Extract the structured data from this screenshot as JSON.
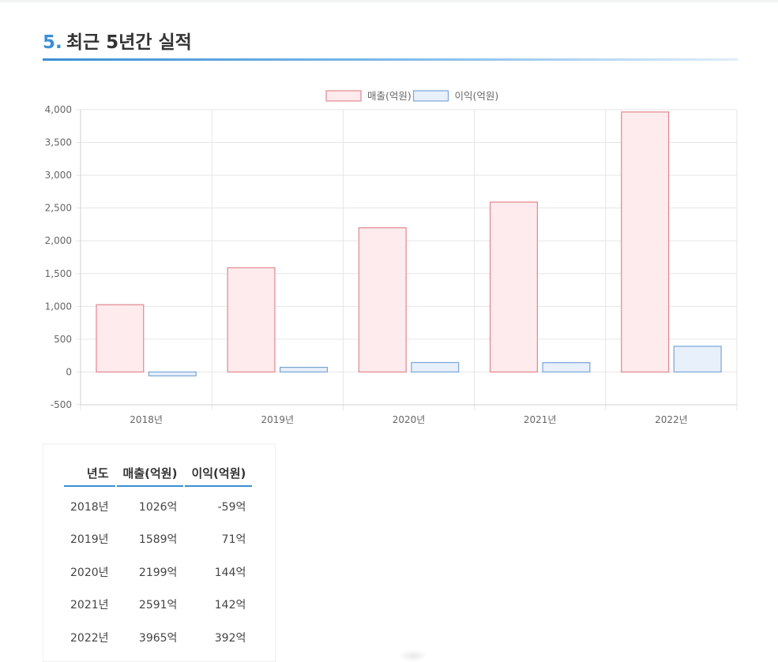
{
  "section": {
    "number": "5.",
    "title": "최근 5년간 실적"
  },
  "chart_data": {
    "type": "bar",
    "categories": [
      "2018년",
      "2019년",
      "2020년",
      "2021년",
      "2022년"
    ],
    "series": [
      {
        "name": "매출(억원)",
        "values": [
          1026,
          1589,
          2199,
          2591,
          3965
        ],
        "fill": "#fdebed",
        "stroke": "#e2868e"
      },
      {
        "name": "이익(억원)",
        "values": [
          -59,
          71,
          144,
          142,
          392
        ],
        "fill": "#e7f0fb",
        "stroke": "#7aa5d6"
      }
    ],
    "ylim": [
      -500,
      4000
    ],
    "yticks": [
      4000,
      3500,
      3000,
      2500,
      2000,
      1500,
      1000,
      500,
      0,
      -500
    ],
    "ytick_labels": [
      "4,000",
      "3,500",
      "3,000",
      "2,500",
      "2,000",
      "1,500",
      "1,000",
      "500",
      "0",
      "-500"
    ],
    "legend_position": "top-center",
    "grid": true
  },
  "table": {
    "headers": [
      "년도",
      "매출(억원)",
      "이익(억원)"
    ],
    "rows": [
      [
        "2018년",
        "1026억",
        "-59억"
      ],
      [
        "2019년",
        "1589억",
        "71억"
      ],
      [
        "2020년",
        "2199억",
        "144억"
      ],
      [
        "2021년",
        "2591억",
        "142억"
      ],
      [
        "2022년",
        "3965억",
        "392억"
      ]
    ]
  }
}
